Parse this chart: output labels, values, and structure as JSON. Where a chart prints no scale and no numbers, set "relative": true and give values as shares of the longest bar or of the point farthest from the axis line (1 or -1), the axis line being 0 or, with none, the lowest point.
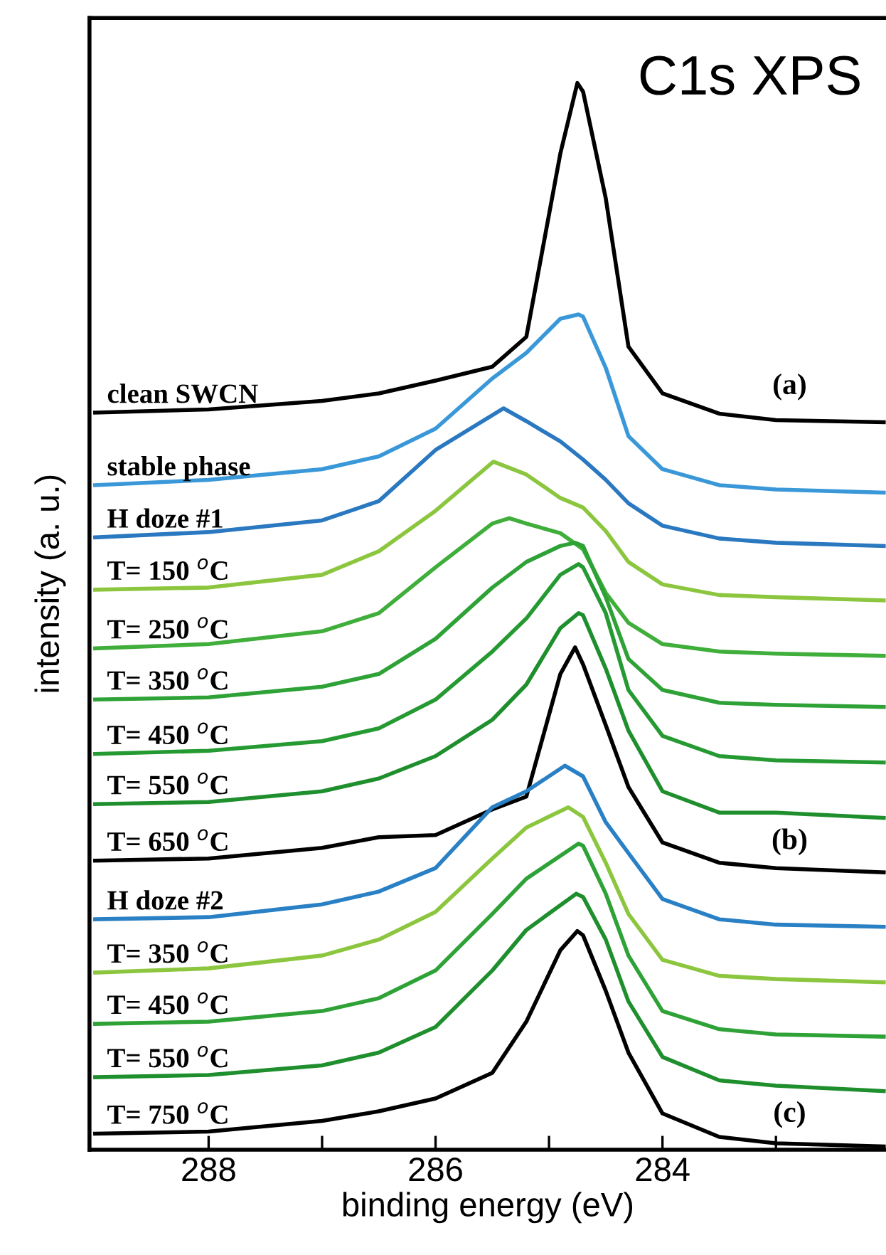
{
  "chart_data": {
    "type": "line",
    "relative": true,
    "xlabel": "binding energy (eV)",
    "ylabel": "intensity (a. u.)",
    "xlim": [
      289.05,
      282.03
    ],
    "xticks": [
      288,
      {
        "value": 287,
        "label": null
      },
      286,
      {
        "value": 285,
        "label": null
      },
      284,
      {
        "value": 283,
        "label": null
      }
    ],
    "tick_labels": "x",
    "line_style": "solid",
    "annotations": [
      "C1s XPS",
      "(a)",
      "(b)",
      "(c)"
    ],
    "series": [
      {
        "name": "clean SWCN",
        "color": "#000000",
        "x": [
          289.0,
          288,
          287,
          286.5,
          286,
          285.5,
          285.2,
          284.9,
          284.75,
          284.7,
          284.5,
          284.3,
          284,
          283.5,
          283,
          282.05
        ],
        "values": [
          0.691,
          0.694,
          0.702,
          0.709,
          0.721,
          0.734,
          0.762,
          0.934,
          1.0,
          0.992,
          0.892,
          0.753,
          0.709,
          0.69,
          0.684,
          0.682
        ]
      },
      {
        "name": "stable phase",
        "color": "#3a98d8",
        "x": [
          289.0,
          288,
          287,
          286.5,
          286,
          285.5,
          285.2,
          284.9,
          284.74,
          284.7,
          284.5,
          284.3,
          284,
          283.5,
          283,
          282.05
        ],
        "values": [
          0.623,
          0.628,
          0.638,
          0.65,
          0.676,
          0.723,
          0.747,
          0.779,
          0.783,
          0.781,
          0.733,
          0.669,
          0.638,
          0.623,
          0.619,
          0.616
        ]
      },
      {
        "name": "H doze #1",
        "color": "#2a78c0",
        "x": [
          289.0,
          288,
          287,
          286.5,
          286,
          285.4,
          285.2,
          284.9,
          284.7,
          284.5,
          284.3,
          284,
          283.5,
          283,
          282.05
        ],
        "values": [
          0.574,
          0.579,
          0.59,
          0.608,
          0.656,
          0.695,
          0.683,
          0.664,
          0.647,
          0.628,
          0.606,
          0.585,
          0.573,
          0.569,
          0.566
        ]
      },
      {
        "name": "T= 150 $^{o}$C",
        "color": "#8cc63f",
        "x": [
          289.0,
          288,
          287,
          286.5,
          286,
          285.49,
          285.2,
          284.9,
          284.7,
          284.5,
          284.3,
          284,
          283.5,
          283,
          282.05
        ],
        "values": [
          0.525,
          0.527,
          0.539,
          0.561,
          0.599,
          0.645,
          0.633,
          0.611,
          0.602,
          0.58,
          0.551,
          0.53,
          0.52,
          0.518,
          0.515
        ]
      },
      {
        "name": "T= 250 $^{o}$C",
        "color": "#3fae3a",
        "x": [
          289.0,
          288,
          287,
          286.5,
          286,
          285.5,
          285.35,
          285.2,
          284.9,
          284.7,
          284.5,
          284.3,
          284,
          283.5,
          283,
          282.05
        ],
        "values": [
          0.47,
          0.474,
          0.486,
          0.503,
          0.546,
          0.587,
          0.592,
          0.587,
          0.578,
          0.563,
          0.522,
          0.494,
          0.474,
          0.467,
          0.465,
          0.463
        ]
      },
      {
        "name": "T= 350 $^{o}$C",
        "color": "#2ea236",
        "x": [
          289.0,
          288,
          287,
          286.5,
          286,
          285.5,
          285.2,
          284.9,
          284.77,
          284.7,
          284.5,
          284.3,
          284,
          283.5,
          283,
          282.05
        ],
        "values": [
          0.422,
          0.424,
          0.434,
          0.446,
          0.479,
          0.527,
          0.551,
          0.566,
          0.569,
          0.566,
          0.518,
          0.46,
          0.431,
          0.419,
          0.417,
          0.415
        ]
      },
      {
        "name": "T= 450 $^{o}$C",
        "color": "#269a32",
        "x": [
          289.0,
          288,
          287,
          286.5,
          286,
          285.5,
          285.2,
          284.9,
          284.74,
          284.7,
          284.5,
          284.3,
          284,
          283.5,
          283,
          282.05
        ],
        "values": [
          0.371,
          0.374,
          0.383,
          0.395,
          0.422,
          0.467,
          0.498,
          0.539,
          0.549,
          0.546,
          0.503,
          0.431,
          0.388,
          0.369,
          0.365,
          0.363
        ]
      },
      {
        "name": "T= 550 $^{o}$C",
        "color": "#1f8f2e",
        "x": [
          289.0,
          288,
          287,
          286.5,
          286,
          285.5,
          285.2,
          284.9,
          284.74,
          284.7,
          284.5,
          284.3,
          284,
          283.5,
          283,
          282.05
        ],
        "values": [
          0.324,
          0.326,
          0.336,
          0.348,
          0.369,
          0.403,
          0.436,
          0.489,
          0.503,
          0.501,
          0.451,
          0.393,
          0.336,
          0.316,
          0.316,
          0.311
        ]
      },
      {
        "name": "T= 650 $^{o}$C",
        "color": "#000000",
        "x": [
          289.0,
          288,
          287,
          286.5,
          286,
          285.5,
          285.2,
          284.9,
          284.77,
          284.7,
          284.5,
          284.3,
          284,
          283.5,
          283,
          282.05
        ],
        "values": [
          0.271,
          0.273,
          0.283,
          0.293,
          0.295,
          0.319,
          0.331,
          0.446,
          0.471,
          0.455,
          0.398,
          0.34,
          0.288,
          0.269,
          0.264,
          0.26
        ]
      },
      {
        "name": "H doze #2",
        "color": "#2a80c4",
        "x": [
          289.0,
          288,
          287,
          286.5,
          286,
          285.5,
          285.2,
          284.86,
          284.7,
          284.5,
          284.3,
          284,
          283.5,
          283,
          282.05
        ],
        "values": [
          0.216,
          0.218,
          0.23,
          0.242,
          0.264,
          0.321,
          0.336,
          0.36,
          0.35,
          0.307,
          0.278,
          0.235,
          0.216,
          0.211,
          0.209
        ]
      },
      {
        "name": "T= 350 $^{o}$C",
        "color": "#8cc63f",
        "x": [
          289.0,
          288,
          287,
          286.5,
          286,
          285.5,
          285.2,
          284.83,
          284.7,
          284.5,
          284.3,
          284,
          283.5,
          283,
          282.05
        ],
        "values": [
          0.166,
          0.17,
          0.182,
          0.197,
          0.223,
          0.273,
          0.302,
          0.321,
          0.312,
          0.269,
          0.221,
          0.178,
          0.163,
          0.16,
          0.157
        ]
      },
      {
        "name": "T= 450 $^{o}$C",
        "color": "#2ea236",
        "x": [
          289.0,
          288,
          287,
          286.5,
          286,
          285.5,
          285.2,
          284.74,
          284.7,
          284.5,
          284.3,
          284,
          283.5,
          283,
          282.05
        ],
        "values": [
          0.118,
          0.12,
          0.13,
          0.142,
          0.168,
          0.221,
          0.254,
          0.287,
          0.285,
          0.24,
          0.182,
          0.13,
          0.113,
          0.108,
          0.106
        ]
      },
      {
        "name": "T= 550 $^{o}$C",
        "color": "#1f8f2e",
        "x": [
          289.0,
          288,
          287,
          286.5,
          286,
          285.5,
          285.2,
          284.76,
          284.7,
          284.5,
          284.3,
          284,
          283.5,
          283,
          282.05
        ],
        "values": [
          0.068,
          0.07,
          0.079,
          0.091,
          0.115,
          0.168,
          0.206,
          0.24,
          0.237,
          0.197,
          0.139,
          0.087,
          0.065,
          0.06,
          0.055
        ]
      },
      {
        "name": "T= 750 $^{o}$C",
        "color": "#000000",
        "x": [
          289.0,
          288,
          287,
          286.5,
          286,
          285.5,
          285.2,
          284.9,
          284.75,
          284.7,
          284.5,
          284.3,
          284,
          283.5,
          283,
          282.05
        ],
        "values": [
          0.015,
          0.017,
          0.027,
          0.036,
          0.048,
          0.072,
          0.12,
          0.187,
          0.205,
          0.201,
          0.149,
          0.091,
          0.034,
          0.012,
          0.006,
          0.003
        ]
      }
    ]
  }
}
